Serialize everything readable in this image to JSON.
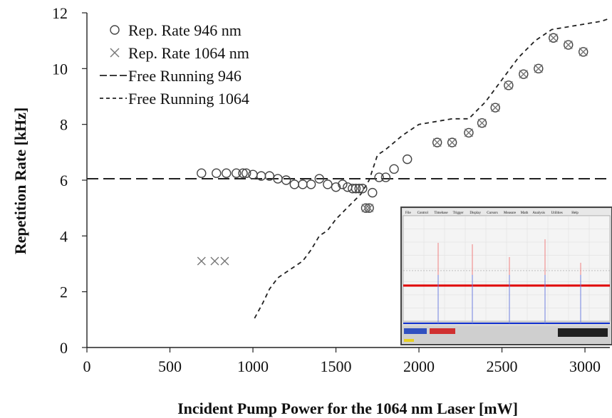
{
  "chart_data": {
    "type": "scatter",
    "xlabel": "Incident Pump Power for the 1064 nm Laser [mW]",
    "ylabel": "Repetition Rate [kHz]",
    "xlim": [
      0,
      3150
    ],
    "ylim": [
      0,
      12
    ],
    "xticks": [
      "0",
      "500",
      "1000",
      "1500",
      "2000",
      "2500",
      "3000"
    ],
    "yticks": [
      "0",
      "2",
      "4",
      "6",
      "8",
      "10",
      "12"
    ],
    "grid": false,
    "legend_position": "top-left",
    "series": [
      {
        "name": "Rep. Rate 946 nm",
        "marker": "circle",
        "color": "#444444",
        "x": [
          690,
          780,
          840,
          900,
          940,
          960,
          1000,
          1050,
          1100,
          1150,
          1200,
          1250,
          1300,
          1350,
          1400,
          1450,
          1500,
          1540,
          1570,
          1600,
          1620,
          1640,
          1660,
          1680,
          1700,
          1720,
          1760,
          1800,
          1850,
          1930,
          2110,
          2200,
          2300,
          2380,
          2460,
          2540,
          2630,
          2720,
          2810,
          2900,
          2990
        ],
        "y": [
          6.25,
          6.25,
          6.25,
          6.25,
          6.25,
          6.25,
          6.2,
          6.15,
          6.15,
          6.05,
          6.0,
          5.85,
          5.85,
          5.85,
          6.05,
          5.85,
          5.75,
          5.85,
          5.75,
          5.7,
          5.7,
          5.7,
          5.7,
          5.0,
          5.0,
          5.55,
          6.1,
          6.1,
          6.4,
          6.75,
          7.35,
          7.35,
          7.7,
          8.05,
          8.6,
          9.4,
          9.8,
          10.0,
          11.1,
          10.85,
          10.6
        ]
      },
      {
        "name": "Rep. Rate 1064 nm",
        "marker": "x",
        "color": "#777777",
        "x": [
          690,
          770,
          830,
          1680,
          1700,
          2110,
          2200,
          2300,
          2380,
          2460,
          2540,
          2630,
          2720,
          2810,
          2900,
          2990
        ],
        "y": [
          3.1,
          3.1,
          3.1,
          5.0,
          5.0,
          7.35,
          7.35,
          7.7,
          8.05,
          8.6,
          9.4,
          9.8,
          10.0,
          11.1,
          10.85,
          10.6
        ]
      },
      {
        "name": "Free Running 946",
        "style": "long-dash",
        "color": "#222222",
        "x": [
          0,
          3150
        ],
        "y": [
          6.05,
          6.05
        ]
      },
      {
        "name": "Free Running 1064",
        "style": "short-dash",
        "color": "#222222",
        "x": [
          1010,
          1060,
          1100,
          1150,
          1200,
          1300,
          1350,
          1400,
          1450,
          1500,
          1600,
          1650,
          1700,
          1750,
          1800,
          1900,
          2000,
          2100,
          2200,
          2300,
          2400,
          2500,
          2600,
          2700,
          2800,
          2900,
          3000,
          3100,
          3150
        ],
        "y": [
          1.05,
          1.6,
          2.1,
          2.5,
          2.7,
          3.1,
          3.5,
          4.0,
          4.2,
          4.6,
          5.2,
          5.5,
          6.0,
          6.9,
          7.1,
          7.6,
          8.0,
          8.1,
          8.2,
          8.2,
          8.8,
          9.6,
          10.4,
          11.0,
          11.4,
          11.5,
          11.6,
          11.7,
          11.8
        ]
      }
    ]
  },
  "inset": {
    "menu_items": [
      "File",
      "Control",
      "Timebase",
      "Trigger",
      "Display",
      "Cursors",
      "Measure",
      "Math",
      "Analysis",
      "Utilities",
      "Help"
    ],
    "colors": {
      "trace_red": "#e00000",
      "trace_blue": "#1030d0",
      "frame": "#444444"
    }
  }
}
